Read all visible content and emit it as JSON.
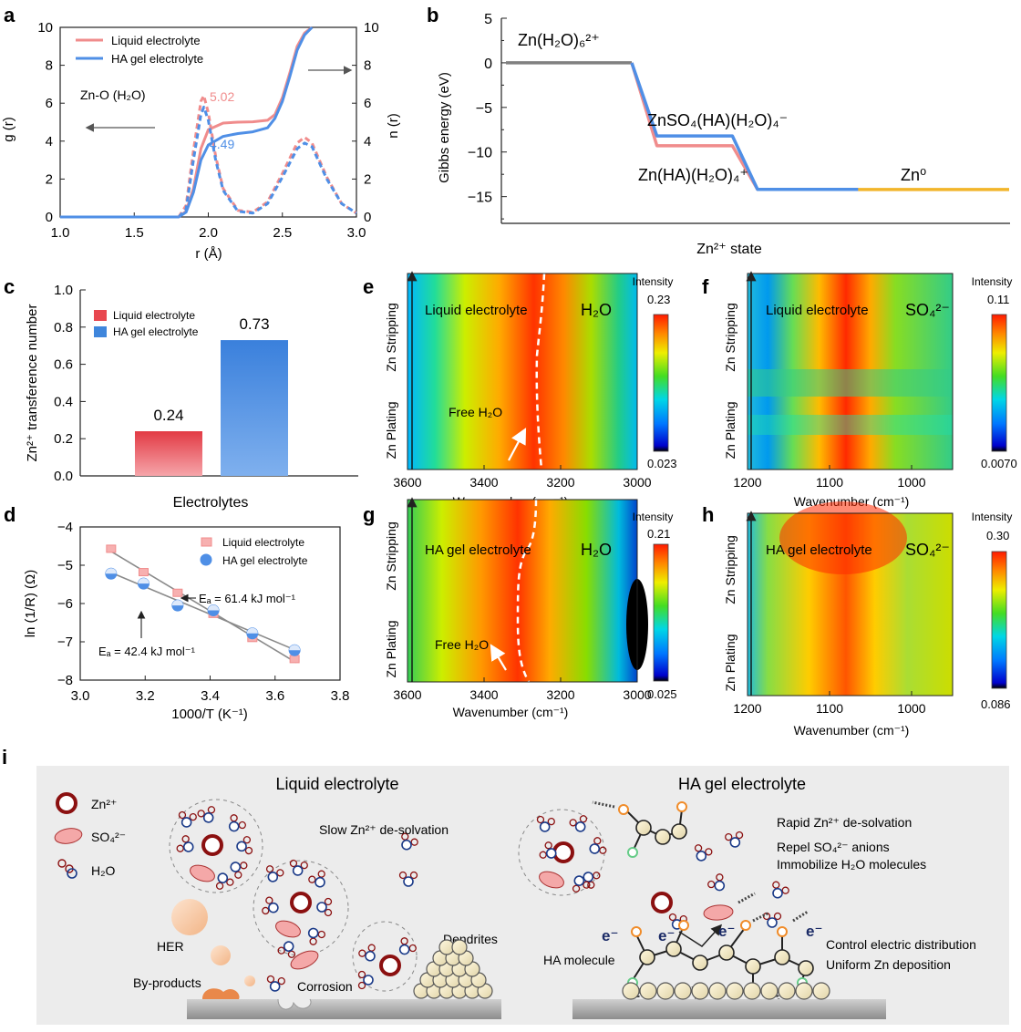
{
  "panels": {
    "a": "a",
    "b": "b",
    "c": "c",
    "d": "d",
    "e": "e",
    "f": "f",
    "g": "g",
    "h": "h",
    "i": "i"
  },
  "colors": {
    "liquid": "#f08c8c",
    "gel": "#4f8fe6",
    "liquid_bar": "#e8474f",
    "gel_bar": "#3f86dc",
    "gray": "#808080",
    "zn0": "#f2b52a"
  },
  "chart_data": [
    {
      "id": "a",
      "type": "line",
      "xlabel": "r (Å)",
      "ylabel_left": "g (r)",
      "ylabel_right": "n (r)",
      "xlim": [
        1.0,
        3.0
      ],
      "ylim": [
        0,
        10
      ],
      "xticks": [
        "1.0",
        "1.5",
        "2.0",
        "2.5",
        "3.0"
      ],
      "yticks": [
        "0",
        "2",
        "4",
        "6",
        "8",
        "10"
      ],
      "legend": [
        "Liquid electrolyte",
        "HA gel electrolyte"
      ],
      "annotation": "Zn-O (H₂O)",
      "cn_labels": [
        "5.02",
        "4.49"
      ],
      "series": [
        {
          "name": "Liquid electrolyte n(r)",
          "style": "solid",
          "x": [
            1.0,
            1.8,
            1.85,
            1.9,
            1.95,
            2.0,
            2.1,
            2.2,
            2.3,
            2.4,
            2.45,
            2.5,
            2.55,
            2.6,
            2.65,
            2.7
          ],
          "y": [
            0,
            0,
            0.3,
            1.5,
            3.6,
            4.6,
            4.95,
            5.0,
            5.02,
            5.1,
            5.4,
            6.3,
            7.6,
            9.0,
            9.7,
            10.0
          ]
        },
        {
          "name": "HA gel electrolyte n(r)",
          "style": "solid",
          "x": [
            1.0,
            1.8,
            1.85,
            1.9,
            1.95,
            2.0,
            2.1,
            2.2,
            2.3,
            2.4,
            2.45,
            2.5,
            2.55,
            2.6,
            2.65,
            2.7
          ],
          "y": [
            0,
            0,
            0.25,
            1.3,
            3.0,
            3.8,
            4.25,
            4.4,
            4.49,
            4.7,
            5.2,
            6.1,
            7.4,
            8.8,
            9.6,
            10.0
          ]
        },
        {
          "name": "Liquid electrolyte g(r)",
          "style": "dashed",
          "x": [
            1.0,
            1.8,
            1.85,
            1.9,
            1.95,
            1.97,
            2.0,
            2.05,
            2.1,
            2.2,
            2.3,
            2.4,
            2.5,
            2.6,
            2.65,
            2.7,
            2.8,
            2.9,
            3.0
          ],
          "y": [
            0,
            0,
            0.6,
            3.5,
            6.1,
            6.4,
            5.5,
            3.2,
            1.5,
            0.35,
            0.25,
            0.8,
            2.3,
            3.9,
            4.2,
            3.9,
            2.1,
            0.7,
            0.2
          ]
        },
        {
          "name": "HA gel electrolyte g(r)",
          "style": "dashed",
          "x": [
            1.0,
            1.8,
            1.85,
            1.9,
            1.95,
            1.97,
            2.0,
            2.05,
            2.1,
            2.2,
            2.3,
            2.4,
            2.5,
            2.6,
            2.65,
            2.7,
            2.8,
            2.9,
            3.0
          ],
          "y": [
            0,
            0,
            0.4,
            3.0,
            5.4,
            5.8,
            5.1,
            3.0,
            1.4,
            0.3,
            0.2,
            0.7,
            2.1,
            3.6,
            3.9,
            3.7,
            2.0,
            0.7,
            0.2
          ]
        }
      ]
    },
    {
      "id": "b",
      "type": "line",
      "xlabel": "Zn²⁺ state",
      "ylabel": "Gibbs energy (eV)",
      "ylim": [
        -18,
        5
      ],
      "yticks": [
        "5",
        "0",
        "−5",
        "−10",
        "−15"
      ],
      "state_labels": {
        "s1": "Zn(H₂O)₆²⁺",
        "s2": "ZnSO₄(HA)(H₂O)₄⁻",
        "s3": "Zn(HA)(H₂O)₄⁺",
        "s4": "Zn⁰"
      },
      "series": [
        {
          "name": "Liquid electrolyte",
          "x": [
            0,
            1,
            1.2,
            1.8,
            2.0,
            2.8,
            3.0,
            4.0
          ],
          "y": [
            0,
            0,
            -9.3,
            -9.3,
            -14.2,
            -14.2,
            -14.2,
            -14.2
          ]
        },
        {
          "name": "HA gel electrolyte",
          "x": [
            0,
            1,
            1.2,
            1.8,
            2.0,
            2.8,
            3.0,
            4.0
          ],
          "y": [
            0,
            0,
            -8.2,
            -8.2,
            -14.2,
            -14.2,
            -14.2,
            -14.2
          ]
        }
      ]
    },
    {
      "id": "c",
      "type": "bar",
      "xlabel": "Electrolytes",
      "ylabel": "Zn²⁺ transference number",
      "ylim": [
        0,
        1.0
      ],
      "yticks": [
        "0.0",
        "0.2",
        "0.4",
        "0.6",
        "0.8",
        "1.0"
      ],
      "categories": [
        "Liquid electrolyte",
        "HA gel electrolyte"
      ],
      "values": [
        0.24,
        0.73
      ],
      "value_labels": [
        "0.24",
        "0.73"
      ],
      "legend": [
        "Liquid electrolyte",
        "HA gel electrolyte"
      ]
    },
    {
      "id": "d",
      "type": "scatter",
      "xlabel": "1000/T (K⁻¹)",
      "ylabel": "ln (1/R) (Ω)",
      "xlim": [
        3.0,
        3.8
      ],
      "ylim": [
        -8,
        -4
      ],
      "xticks": [
        "3.0",
        "3.2",
        "3.4",
        "3.6",
        "3.8"
      ],
      "yticks": [
        "−4",
        "−5",
        "−6",
        "−7",
        "−8"
      ],
      "legend": [
        "Liquid electrolyte",
        "HA gel electrolyte"
      ],
      "annotations": [
        "Eₐ = 61.4 kJ mol⁻¹",
        "Eₐ = 42.4 kJ mol⁻¹"
      ],
      "series": [
        {
          "name": "Liquid electrolyte",
          "x": [
            3.095,
            3.195,
            3.3,
            3.41,
            3.53,
            3.66
          ],
          "y": [
            -4.57,
            -5.18,
            -5.72,
            -6.27,
            -6.9,
            -7.45
          ]
        },
        {
          "name": "HA gel electrolyte",
          "x": [
            3.095,
            3.195,
            3.3,
            3.41,
            3.53,
            3.66
          ],
          "y": [
            -5.22,
            -5.48,
            -6.05,
            -6.18,
            -6.78,
            -7.22
          ]
        }
      ]
    },
    {
      "id": "e",
      "type": "heatmap",
      "title": "Liquid electrolyte",
      "species": "H₂O",
      "xlabel": "Wavenumber (cm⁻¹)",
      "xlim": [
        3600,
        3000
      ],
      "xticks": [
        "3600",
        "3400",
        "3200",
        "3000"
      ],
      "ylabels": [
        "Zn Stripping",
        "Zn Plating"
      ],
      "annotation": "Free H₂O",
      "colorbar": {
        "label": "Intensity",
        "max": "0.23",
        "min": "0.023"
      }
    },
    {
      "id": "f",
      "type": "heatmap",
      "title": "Liquid electrolyte",
      "species": "SO₄²⁻",
      "xlabel": "Wavenumber (cm⁻¹)",
      "xlim": [
        1200,
        950
      ],
      "xticks": [
        "1200",
        "1100",
        "1000"
      ],
      "ylabels": [
        "Zn Stripping",
        "Zn Plating"
      ],
      "colorbar": {
        "label": "Intensity",
        "max": "0.11",
        "min": "0.0070"
      }
    },
    {
      "id": "g",
      "type": "heatmap",
      "title": "HA gel electrolyte",
      "species": "H₂O",
      "xlabel": "Wavenumber (cm⁻¹)",
      "xlim": [
        3600,
        3000
      ],
      "xticks": [
        "3600",
        "3400",
        "3200",
        "3000"
      ],
      "ylabels": [
        "Zn Stripping",
        "Zn Plating"
      ],
      "annotation": "Free H₂O",
      "colorbar": {
        "label": "Intensity",
        "max": "0.21",
        "min": "0.025"
      }
    },
    {
      "id": "h",
      "type": "heatmap",
      "title": "HA gel electrolyte",
      "species": "SO₄²⁻",
      "xlabel": "Wavenumber (cm⁻¹)",
      "xlim": [
        1200,
        950
      ],
      "xticks": [
        "1200",
        "1100",
        "1000"
      ],
      "ylabels": [
        "Zn Stripping",
        "Zn Plating"
      ],
      "colorbar": {
        "label": "Intensity",
        "max": "0.30",
        "min": "0.086"
      }
    }
  ],
  "schematic": {
    "title_left": "Liquid electrolyte",
    "title_right": "HA gel electrolyte",
    "legend": {
      "zn": "Zn²⁺",
      "so4": "SO₄²⁻",
      "h2o": "H₂O"
    },
    "left": {
      "slow": "Slow Zn²⁺ de-solvation",
      "her": "HER",
      "byproducts": "By-products",
      "corrosion": "Corrosion",
      "dendrites": "Dendrites"
    },
    "right": {
      "rapid": "Rapid Zn²⁺ de-solvation",
      "repel": "Repel SO₄²⁻ anions",
      "immobilize": "Immobilize H₂O molecules",
      "ha": "HA molecule",
      "control": "Control electric distribution",
      "uniform": "Uniform Zn deposition",
      "electron": "e⁻"
    }
  }
}
